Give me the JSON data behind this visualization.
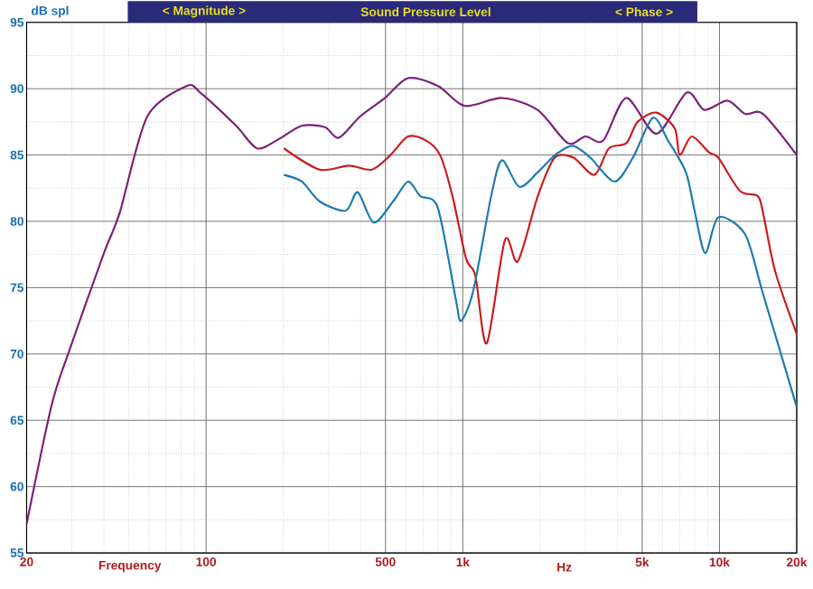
{
  "chart_data": {
    "type": "line",
    "title": "Sound Pressure Level",
    "xlabel": "Frequency",
    "ylabel": "dB spl",
    "annotations": [
      "< Magnitude >",
      "< Phase >",
      "Hz"
    ],
    "log": "x",
    "grid": true,
    "xlim": [
      20,
      20000
    ],
    "ylim": [
      55,
      95
    ],
    "xticks": [
      20,
      100,
      500,
      {
        "value": 1000,
        "label": "1k"
      },
      {
        "value": 5000,
        "label": "5k"
      },
      {
        "value": 10000,
        "label": "10k"
      },
      {
        "value": 20000,
        "label": "20k"
      }
    ],
    "yticks": [
      55,
      60,
      65,
      70,
      75,
      80,
      85,
      90,
      95
    ],
    "series": [
      {
        "color": "#7b1f7a",
        "x": [
          20,
          25,
          29,
          40,
          46,
          59,
          84,
          95,
          131,
          158,
          192,
          236,
          290,
          329,
          398,
          498,
          612,
          802,
          1018,
          1423,
          1956,
          2564,
          3006,
          3525,
          4335,
          5680,
          7448,
          8729,
          10740,
          12590,
          14770,
          20000
        ],
        "values": [
          57.2,
          66.1,
          70,
          77.6,
          80.6,
          87.9,
          90.2,
          89.7,
          87.2,
          85.5,
          86.2,
          87.2,
          87.1,
          86.3,
          87.9,
          89.3,
          90.8,
          90.2,
          88.7,
          89.3,
          88.4,
          85.9,
          86.4,
          86.1,
          89.3,
          86.6,
          89.7,
          88.4,
          89.1,
          88.1,
          88.1,
          85.0
        ]
      },
      {
        "color": "#cc1a1a",
        "x": [
          201,
          277,
          360,
          443,
          523,
          612,
          718,
          816,
          912,
          1030,
          1120,
          1240,
          1460,
          1640,
          1960,
          2280,
          2700,
          3260,
          3710,
          4340,
          4800,
          5680,
          6700,
          7000,
          7800,
          9100,
          9900,
          12000,
          14100,
          14800,
          16500,
          20000
        ],
        "values": [
          85.5,
          83.9,
          84.2,
          83.9,
          85.0,
          86.4,
          86.1,
          85.0,
          81.9,
          77.2,
          75.9,
          70.8,
          78.6,
          77.0,
          81.9,
          84.8,
          84.8,
          83.5,
          85.5,
          85.9,
          87.5,
          88.2,
          87.0,
          85.0,
          86.4,
          85.2,
          84.8,
          82.3,
          81.9,
          80.6,
          76.2,
          71.5
        ]
      },
      {
        "color": "#1a7ab0",
        "x": [
          201,
          236,
          277,
          350,
          390,
          450,
          540,
          612,
          684,
          800,
          940,
          985,
          1100,
          1290,
          1420,
          1660,
          1960,
          2290,
          2680,
          3140,
          3900,
          4600,
          5500,
          6300,
          7400,
          8000,
          8800,
          9900,
          12600,
          14800,
          20000
        ],
        "values": [
          83.5,
          83.0,
          81.5,
          80.8,
          82.2,
          79.9,
          81.6,
          83.0,
          81.9,
          81.0,
          74.1,
          72.5,
          74.8,
          81.9,
          84.6,
          82.6,
          83.7,
          85.0,
          85.7,
          84.8,
          83.0,
          84.8,
          87.8,
          86.1,
          83.7,
          80.8,
          77.6,
          80.3,
          79.0,
          74.5,
          66.0
        ]
      }
    ]
  }
}
